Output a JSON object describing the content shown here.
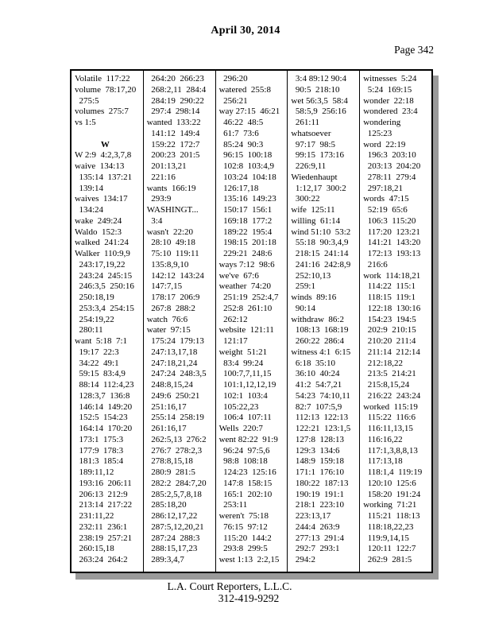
{
  "header": {
    "date": "April 30, 2014",
    "page_label": "Page 342"
  },
  "footer": {
    "company": "L.A. Court Reporters, L.L.C.",
    "phone": "312-419-9292"
  },
  "index": {
    "columns": [
      [
        "Volatile  117:22",
        "volume  78:17,20",
        "  275:5",
        "volumes  275:7",
        "vs 1:5",
        "",
        "@@W",
        "W 2:9  4:2,3,7,8",
        "waive  134:13",
        "  135:14  137:21",
        "  139:14",
        "waives  134:17",
        "  134:24",
        "wake  249:24",
        "Waldo  152:3",
        "walked  241:24",
        "Walker  110:9,9",
        "  243:17,19,22",
        "  243:24  245:15",
        "  246:3,5  250:16",
        "  250:18,19",
        "  253:3,4  254:15",
        "  254:19,22",
        "  280:11",
        "want  5:18  7:1",
        "  19:17  22:3",
        "  34:22  49:1",
        "  59:15  83:4,9",
        "  88:14  112:4,23",
        "  128:3,7  136:8",
        "  146:14  149:20",
        "  152:5  154:23",
        "  164:14  170:20",
        "  173:1  175:3",
        "  177:9  178:3",
        "  181:3  185:4",
        "  189:11,12",
        "  193:16  206:11",
        "  206:13  212:9",
        "  213:14  217:22",
        "  231:11,22",
        "  232:11  236:1",
        "  238:19  257:21",
        "  260:15,18",
        "  263:24  264:2"
      ],
      [
        "  264:20  266:23",
        "  268:2,11  284:4",
        "  284:19  290:22",
        "  297:4  298:14",
        "wanted  133:22",
        "  141:12  149:4",
        "  159:22  172:7",
        "  200:23  201:5",
        "  201:13,21",
        "  221:16",
        "wants  166:19",
        "  293:9",
        "WASHINGT...",
        "  3:4",
        "wasn't  22:20",
        "  28:10  49:18",
        "  75:10  119:11",
        "  135:8,9,10",
        "  142:12  143:24",
        "  147:7,15",
        "  178:17  206:9",
        "  267:8  288:2",
        "watch  76:6",
        "water  97:15",
        "  175:24  179:13",
        "  247:13,17,18",
        "  247:18,21,24",
        "  247:24  248:3,5",
        "  248:8,15,24",
        "  249:6  250:21",
        "  251:16,17",
        "  255:14  258:19",
        "  261:16,17",
        "  262:5,13  276:2",
        "  276:7  278:2,3",
        "  278:8,15,18",
        "  280:9  281:5",
        "  282:2  284:7,20",
        "  285:2,5,7,8,18",
        "  285:18,20",
        "  286:12,17,22",
        "  287:5,12,20,21",
        "  287:24  288:3",
        "  288:15,17,23",
        "  289:3,4,7"
      ],
      [
        "  296:20",
        "watered  255:8",
        "  256:21",
        "way 27:15  46:21",
        "  46:22  48:5",
        "  61:7  73:6",
        "  85:24  90:3",
        "  96:15  100:18",
        "  102:8  103:4,9",
        "  103:24  104:18",
        "  126:17,18",
        "  135:16  149:23",
        "  150:17  156:1",
        "  169:18  177:2",
        "  189:22  195:4",
        "  198:15  201:18",
        "  229:21  248:6",
        "ways 7:12  98:6",
        "we've  67:6",
        "weather  74:20",
        "  251:19  252:4,7",
        "  252:8  261:10",
        "  262:12",
        "website  121:11",
        "  121:17",
        "weight  51:21",
        "  83:4  99:24",
        "  100:7,7,11,15",
        "  101:1,12,12,19",
        "  102:1  103:4",
        "  105:22,23",
        "  106:4  107:11",
        "Wells  220:7",
        "went 82:22  91:9",
        "  96:24  97:5,6",
        "  98:8  108:18",
        "  124:23  125:16",
        "  147:8  158:15",
        "  165:1  202:10",
        "  253:11",
        "weren't  75:18",
        "  76:15  97:12",
        "  115:20  144:2",
        "  293:8  299:5",
        "west 1:13  2:2,15"
      ],
      [
        "  3:4 89:12 90:4",
        "  90:5  218:10",
        "wet 56:3,5  58:4",
        "  58:5,9  256:16",
        "  261:11",
        "whatsoever",
        "  97:17  98:5",
        "  99:15  173:16",
        "  226:9,11",
        "Wiedenhaupt",
        "  1:12,17  300:2",
        "  300:22",
        "wife  125:11",
        "willing  61:14",
        "wind 51:10  53:2",
        "  55:18  90:3,4,9",
        "  218:15  241:14",
        "  241:16  242:8,9",
        "  252:10,13",
        "  259:1",
        "winds  89:16",
        "  90:14",
        "withdraw  86:2",
        "  108:13  168:19",
        "  260:22  286:4",
        "witness 4:1  6:15",
        "  6:18  35:10",
        "  36:10  40:24",
        "  41:2  54:7,21",
        "  54:23  74:10,11",
        "  82:7  107:5,9",
        "  112:13  122:13",
        "  122:21  123:1,5",
        "  127:8  128:13",
        "  129:3  134:6",
        "  148:9  159:18",
        "  171:1  176:10",
        "  180:22  187:13",
        "  190:19  191:1",
        "  218:1  223:10",
        "  223:13,17",
        "  244:4  263:9",
        "  277:13  291:4",
        "  292:7  293:1",
        "  294:2"
      ],
      [
        "witnesses  5:24",
        "  5:24  169:15",
        "wonder  22:18",
        "wondered  23:4",
        "wondering",
        "  125:23",
        "word  22:19",
        "  196:3  203:10",
        "  203:13  204:20",
        "  278:11  279:4",
        "  297:18,21",
        "words  47:15",
        "  52:19  65:6",
        "  106:3  115:20",
        "  117:20  123:21",
        "  141:21  143:20",
        "  172:13  193:13",
        "  216:6",
        "work  114:18,21",
        "  114:22  115:1",
        "  118:15  119:1",
        "  122:18  130:16",
        "  154:23  194:5",
        "  202:9  210:15",
        "  210:20  211:4",
        "  211:14  212:14",
        "  212:18,22",
        "  213:5  214:21",
        "  215:8,15,24",
        "  216:22  243:24",
        "worked  115:19",
        "  115:22  116:6",
        "  116:11,13,15",
        "  116:16,22",
        "  117:1,3,8,8,13",
        "  117:13,18",
        "  118:1,4  119:19",
        "  120:10  125:6",
        "  158:20  191:24",
        "working  71:21",
        "  115:21  118:13",
        "  118:18,22,23",
        "  119:9,14,15",
        "  120:11  122:7",
        "  262:9  281:5"
      ]
    ]
  }
}
